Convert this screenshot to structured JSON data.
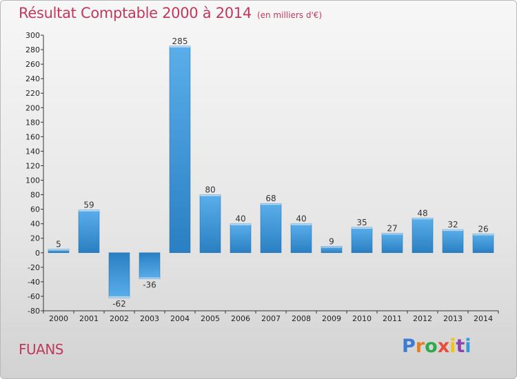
{
  "header": {
    "title": "Résultat Comptable 2000 à 2014",
    "unit": "(en milliers d'€)"
  },
  "footer": {
    "commune": "FUANS",
    "logo_text": "Proxiti",
    "logo_colors": [
      "#3a7bd5",
      "#e67e22",
      "#2eaa4a",
      "#e84c3d",
      "#f1c40f",
      "#8e44ad",
      "#3498db"
    ]
  },
  "chart_data": {
    "type": "bar",
    "title": "Résultat Comptable 2000 à 2014",
    "subtitle": "(en milliers d'€)",
    "xlabel": "",
    "ylabel": "",
    "categories": [
      "2000",
      "2001",
      "2002",
      "2003",
      "2004",
      "2005",
      "2006",
      "2007",
      "2008",
      "2009",
      "2010",
      "2011",
      "2012",
      "2013",
      "2014"
    ],
    "values": [
      5,
      59,
      -62,
      -36,
      285,
      80,
      40,
      68,
      40,
      9,
      35,
      27,
      48,
      32,
      26
    ],
    "ylim": [
      -80,
      300
    ],
    "ytick_step": 20,
    "grid": false,
    "bar_color": "#3a92d8"
  }
}
